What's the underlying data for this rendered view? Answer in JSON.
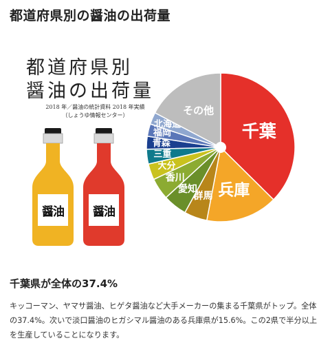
{
  "page": {
    "title": "都道府県別の醤油の出荷量"
  },
  "figure": {
    "title_lines": [
      "都道府県別",
      "醤油の出荷量"
    ],
    "source_lines": [
      "2018 年／醤油の統計資料 2018 年実績",
      "（しょうゆ情報センター）"
    ],
    "bottles": [
      {
        "label": "醤油",
        "liquid_color": "#f0b323"
      },
      {
        "label": "醤油",
        "liquid_color": "#e03a2c"
      }
    ]
  },
  "chart_data": {
    "type": "pie",
    "donut": true,
    "start_angle": "top",
    "direction": "clockwise",
    "series": [
      {
        "name": "千葉",
        "value": 37.4,
        "color": "#e5302a"
      },
      {
        "name": "兵庫",
        "value": 15.6,
        "color": "#f4a628"
      },
      {
        "name": "群馬",
        "value": 5.0,
        "color": "#b8861a"
      },
      {
        "name": "愛知",
        "value": 5.2,
        "color": "#6a8f2a"
      },
      {
        "name": "香川",
        "value": 4.7,
        "color": "#8cab32"
      },
      {
        "name": "大分",
        "value": 3.5,
        "color": "#c9c21e"
      },
      {
        "name": "三重",
        "value": 3.2,
        "color": "#0f7a8c"
      },
      {
        "name": "青森",
        "value": 2.8,
        "color": "#1a3f8f"
      },
      {
        "name": "福岡",
        "value": 2.7,
        "color": "#5a76b8"
      },
      {
        "name": "北海道",
        "value": 2.6,
        "color": "#8fa7cf"
      },
      {
        "name": "その他",
        "value": 17.3,
        "color": "#bdbdbd"
      }
    ]
  },
  "summary": {
    "heading": "千葉県が全体の37.4%",
    "body": "キッコーマン、ヤマサ醤油、ヒゲタ醤油など大手メーカーの集まる千葉県がトップ。全体の37.4%。次いで淡口醤油のヒガシマル醤油のある兵庫県が15.6%。この2県で半分以上を生産していることになります。"
  }
}
